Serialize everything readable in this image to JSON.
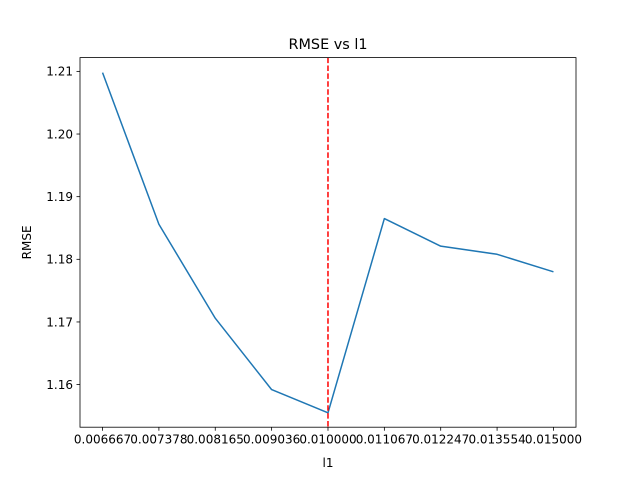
{
  "chart_data": {
    "type": "line",
    "title": "RMSE vs l1",
    "xlabel": "l1",
    "ylabel": "RMSE",
    "x_tick_labels": [
      "0.006667",
      "0.007378",
      "0.008165",
      "0.009036",
      "0.010000",
      "0.011067",
      "0.012247",
      "0.013554",
      "0.015000"
    ],
    "y_ticks": [
      "1.16",
      "1.17",
      "1.18",
      "1.19",
      "1.20",
      "1.21"
    ],
    "ylim": [
      1.1532,
      1.2122
    ],
    "series": [
      {
        "color": "#1f77b4",
        "x": [
          0.006667,
          0.007378,
          0.008165,
          0.009036,
          0.01,
          0.011067,
          0.012247,
          0.013554,
          0.015
        ],
        "values": [
          1.2098,
          1.1856,
          1.1706,
          1.1592,
          1.1555,
          1.1865,
          1.1821,
          1.1808,
          1.178
        ]
      }
    ],
    "reference_line": {
      "orientation": "vertical",
      "x": 0.01,
      "color": "#ff0000",
      "style": "dashed"
    },
    "grid": false,
    "legend": "none",
    "x_scale": "log"
  }
}
